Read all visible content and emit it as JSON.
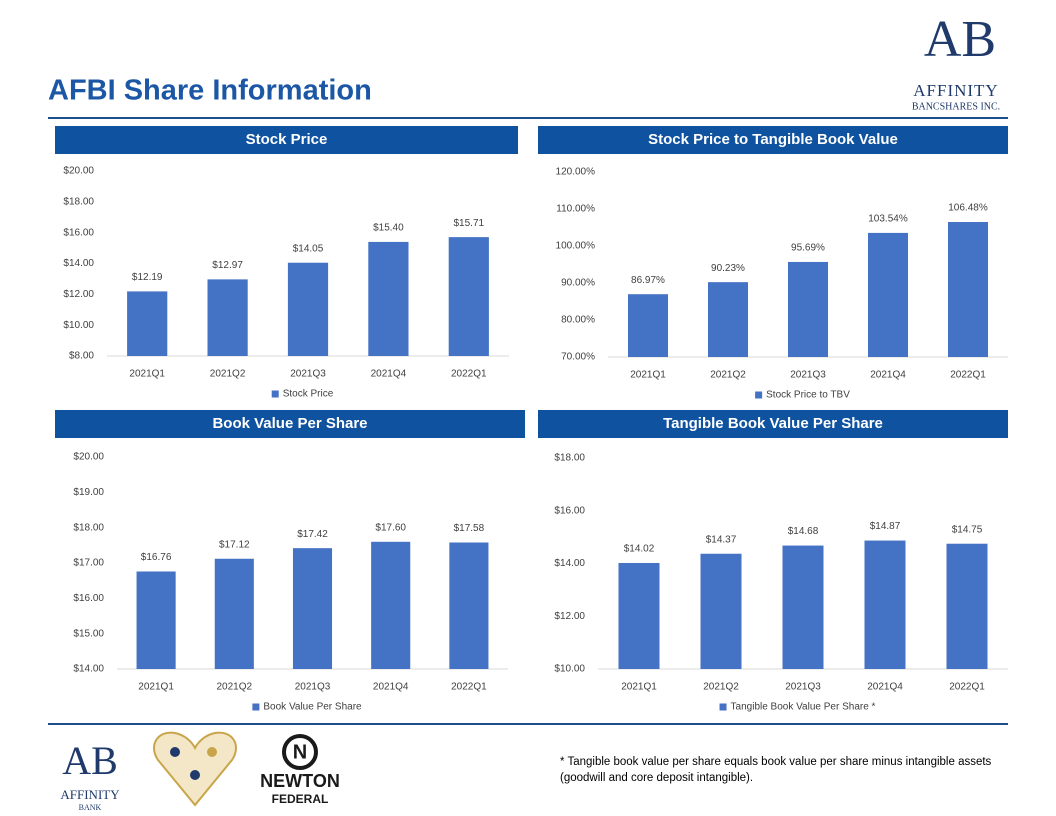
{
  "header": {
    "title": "AFBI Share Information"
  },
  "logo": {
    "mark": "AB",
    "name": "AFFINITY",
    "sub": "BANCSHARES INC."
  },
  "chart_data": [
    {
      "type": "bar",
      "title": "Stock Price",
      "categories": [
        "2021Q1",
        "2021Q2",
        "2021Q3",
        "2021Q4",
        "2022Q1"
      ],
      "series": [
        {
          "name": "Stock Price",
          "color": "#4472c4",
          "values": [
            12.19,
            12.97,
            14.05,
            15.4,
            15.71
          ],
          "value_labels": [
            "$12.19",
            "$12.97",
            "$14.05",
            "$15.40",
            "$15.71"
          ]
        }
      ],
      "ylim": [
        8,
        20
      ],
      "yticks": [
        {
          "value": 8,
          "label": "$8.00"
        },
        {
          "value": 10,
          "label": "$10.00"
        },
        {
          "value": 12,
          "label": "$12.00"
        },
        {
          "value": 14,
          "label": "$14.00"
        },
        {
          "value": 16,
          "label": "$16.00"
        },
        {
          "value": 18,
          "label": "$18.00"
        },
        {
          "value": 20,
          "label": "$20.00"
        }
      ],
      "grid": false,
      "legend": "bottom"
    },
    {
      "type": "bar",
      "title": "Stock Price to Tangible Book Value",
      "categories": [
        "2021Q1",
        "2021Q2",
        "2021Q3",
        "2021Q4",
        "2022Q1"
      ],
      "series": [
        {
          "name": "Stock Price to TBV",
          "color": "#4472c4",
          "values": [
            86.97,
            90.23,
            95.69,
            103.54,
            106.48
          ],
          "value_labels": [
            "86.97%",
            "90.23%",
            "95.69%",
            "103.54%",
            "106.48%"
          ]
        }
      ],
      "ylim": [
        70,
        120
      ],
      "yticks": [
        {
          "value": 70,
          "label": "70.00%"
        },
        {
          "value": 80,
          "label": "80.00%"
        },
        {
          "value": 90,
          "label": "90.00%"
        },
        {
          "value": 100,
          "label": "100.00%"
        },
        {
          "value": 110,
          "label": "110.00%"
        },
        {
          "value": 120,
          "label": "120.00%"
        }
      ],
      "grid": false,
      "legend": "bottom"
    },
    {
      "type": "bar",
      "title": "Book Value Per Share",
      "categories": [
        "2021Q1",
        "2021Q2",
        "2021Q3",
        "2021Q4",
        "2022Q1"
      ],
      "series": [
        {
          "name": "Book Value Per Share",
          "color": "#4472c4",
          "values": [
            16.76,
            17.12,
            17.42,
            17.6,
            17.58
          ],
          "value_labels": [
            "$16.76",
            "$17.12",
            "$17.42",
            "$17.60",
            "$17.58"
          ]
        }
      ],
      "ylim": [
        14,
        20
      ],
      "yticks": [
        {
          "value": 14,
          "label": "$14.00"
        },
        {
          "value": 15,
          "label": "$15.00"
        },
        {
          "value": 16,
          "label": "$16.00"
        },
        {
          "value": 17,
          "label": "$17.00"
        },
        {
          "value": 18,
          "label": "$18.00"
        },
        {
          "value": 19,
          "label": "$19.00"
        },
        {
          "value": 20,
          "label": "$20.00"
        }
      ],
      "grid": false,
      "legend": "bottom"
    },
    {
      "type": "bar",
      "title": "Tangible Book Value Per Share",
      "categories": [
        "2021Q1",
        "2021Q2",
        "2021Q3",
        "2021Q4",
        "2022Q1"
      ],
      "series": [
        {
          "name": "Tangible Book Value Per Share *",
          "color": "#4472c4",
          "values": [
            14.02,
            14.37,
            14.68,
            14.87,
            14.75
          ],
          "value_labels": [
            "$14.02",
            "$14.37",
            "$14.68",
            "$14.87",
            "$14.75"
          ]
        }
      ],
      "ylim": [
        10,
        18
      ],
      "yticks": [
        {
          "value": 10,
          "label": "$10.00"
        },
        {
          "value": 12,
          "label": "$12.00"
        },
        {
          "value": 14,
          "label": "$14.00"
        },
        {
          "value": 16,
          "label": "$16.00"
        },
        {
          "value": 18,
          "label": "$18.00"
        }
      ],
      "grid": false,
      "legend": "bottom"
    }
  ],
  "footnote": "* Tangible book value per share equals book value per share minus intangible assets (goodwill and core deposit intangible).",
  "footer_logos": {
    "bank_mark": "AB",
    "bank_name": "AFFINITY",
    "bank_sub": "BANK",
    "newton_mark": "N",
    "newton_name": "NEWTON",
    "newton_sub": "FEDERAL"
  }
}
